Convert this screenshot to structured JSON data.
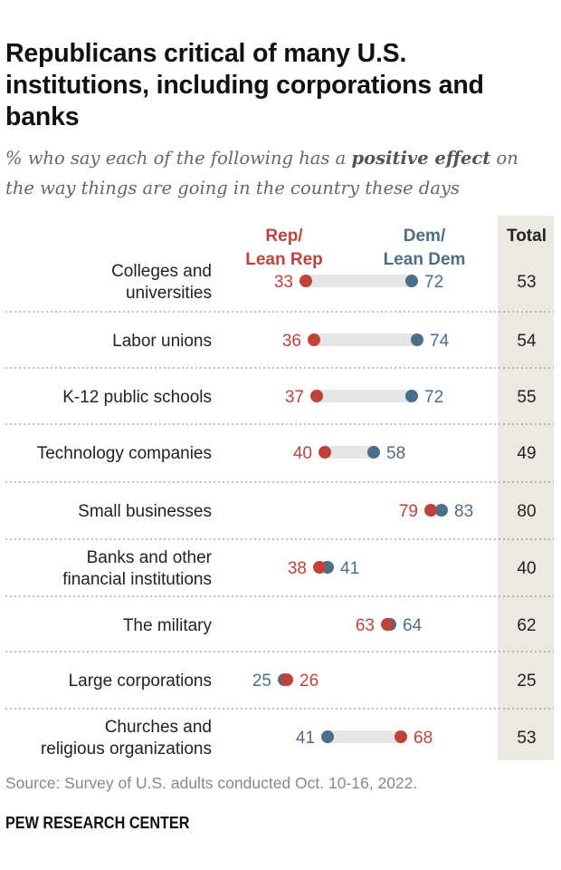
{
  "title": "Republicans critical of many U.S. institutions, including corporations and banks",
  "subtitle_pre": "% who say each of the following has a ",
  "subtitle_bold": "positive effect",
  "subtitle_post": " on the way things are going in the country these days",
  "source": "Source: Survey of U.S. adults conducted Oct. 10-16, 2022.",
  "brand": "PEW RESEARCH CENTER",
  "colors": {
    "rep": "#c0433a",
    "dem": "#4b6e8a",
    "bar": "#e4e6e8",
    "total_bg": "#ece9e2"
  },
  "chart_data": {
    "type": "dot",
    "headers": {
      "rep": [
        "Rep/",
        "Lean Rep"
      ],
      "dem": [
        "Dem/",
        "Lean Dem"
      ],
      "total": "Total"
    },
    "categories": [
      [
        "Colleges and",
        "universities"
      ],
      [
        "Labor unions"
      ],
      [
        "K-12 public schools"
      ],
      [
        "Technology companies"
      ],
      [
        "Small businesses"
      ],
      [
        "Banks and other",
        "financial institutions"
      ],
      [
        "The military"
      ],
      [
        "Large corporations"
      ],
      [
        "Churches and",
        "religious organizations"
      ]
    ],
    "series": [
      {
        "name": "Rep/Lean Rep",
        "values": [
          33,
          36,
          37,
          40,
          79,
          38,
          63,
          26,
          68
        ]
      },
      {
        "name": "Dem/Lean Dem",
        "values": [
          72,
          74,
          72,
          58,
          83,
          41,
          64,
          25,
          41
        ]
      }
    ],
    "total": [
      53,
      54,
      55,
      49,
      80,
      40,
      62,
      25,
      53
    ]
  }
}
